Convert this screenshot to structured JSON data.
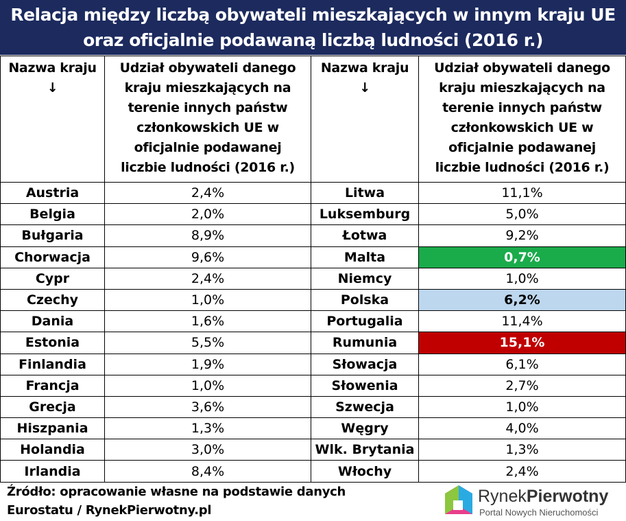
{
  "header": {
    "title_lines": [
      "Relacja między liczbą obywateli mieszkających w innym kraju UE",
      "oraz oficjalnie podawaną liczbą ludności (2016 r.)"
    ]
  },
  "table": {
    "columns": [
      {
        "lines": [
          "Nazwa kraju",
          "↓"
        ]
      },
      {
        "lines": [
          "Udział obywateli danego",
          "kraju mieszkających na",
          "terenie innych państw",
          "członkowskich UE w",
          "oficjalnie podawanej",
          "liczbie ludności (2016 r.)"
        ]
      },
      {
        "lines": [
          "Nazwa kraju",
          "↓"
        ]
      },
      {
        "lines": [
          "Udział obywateli danego",
          "kraju mieszkających na",
          "terenie innych państw",
          "członkowskich UE w",
          "oficjalnie podawanej",
          "liczbie ludności (2016 r.)"
        ]
      }
    ],
    "left": [
      {
        "country": "Austria",
        "value": "2,4%"
      },
      {
        "country": "Belgia",
        "value": "2,0%"
      },
      {
        "country": "Bułgaria",
        "value": "8,9%"
      },
      {
        "country": "Chorwacja",
        "value": "9,6%"
      },
      {
        "country": "Cypr",
        "value": "2,4%"
      },
      {
        "country": "Czechy",
        "value": "1,0%"
      },
      {
        "country": "Dania",
        "value": "1,6%"
      },
      {
        "country": "Estonia",
        "value": "5,5%"
      },
      {
        "country": "Finlandia",
        "value": "1,9%"
      },
      {
        "country": "Francja",
        "value": "1,0%"
      },
      {
        "country": "Grecja",
        "value": "3,6%"
      },
      {
        "country": "Hiszpania",
        "value": "1,3%"
      },
      {
        "country": "Holandia",
        "value": "3,0%"
      },
      {
        "country": "Irlandia",
        "value": "8,4%"
      }
    ],
    "right": [
      {
        "country": "Litwa",
        "value": "11,1%"
      },
      {
        "country": "Luksemburg",
        "value": "5,0%"
      },
      {
        "country": "Łotwa",
        "value": "9,2%"
      },
      {
        "country": "Malta",
        "value": "0,7%",
        "fill": "#1aab4b",
        "text_color": "#ffffff"
      },
      {
        "country": "Niemcy",
        "value": "1,0%"
      },
      {
        "country": "Polska",
        "value": "6,2%",
        "fill": "#bdd7ee",
        "text_color": "#000000"
      },
      {
        "country": "Portugalia",
        "value": "11,4%"
      },
      {
        "country": "Rumunia",
        "value": "15,1%",
        "fill": "#c00000",
        "text_color": "#ffffff"
      },
      {
        "country": "Słowacja",
        "value": "6,1%"
      },
      {
        "country": "Słowenia",
        "value": "2,7%"
      },
      {
        "country": "Szwecja",
        "value": "1,0%"
      },
      {
        "country": "Węgry",
        "value": "4,0%"
      },
      {
        "country": "Wlk. Brytania",
        "value": "1,3%"
      },
      {
        "country": "Włochy",
        "value": "2,4%"
      }
    ]
  },
  "footer": {
    "source_lines": [
      "Źródło: opracowanie własne na podstawie danych",
      "Eurostatu / RynekPierwotny.pl"
    ],
    "logo": {
      "name_a": "Rynek",
      "name_b": "Pierwotny",
      "tagline": "Portal Nowych Nieruchomości"
    }
  }
}
